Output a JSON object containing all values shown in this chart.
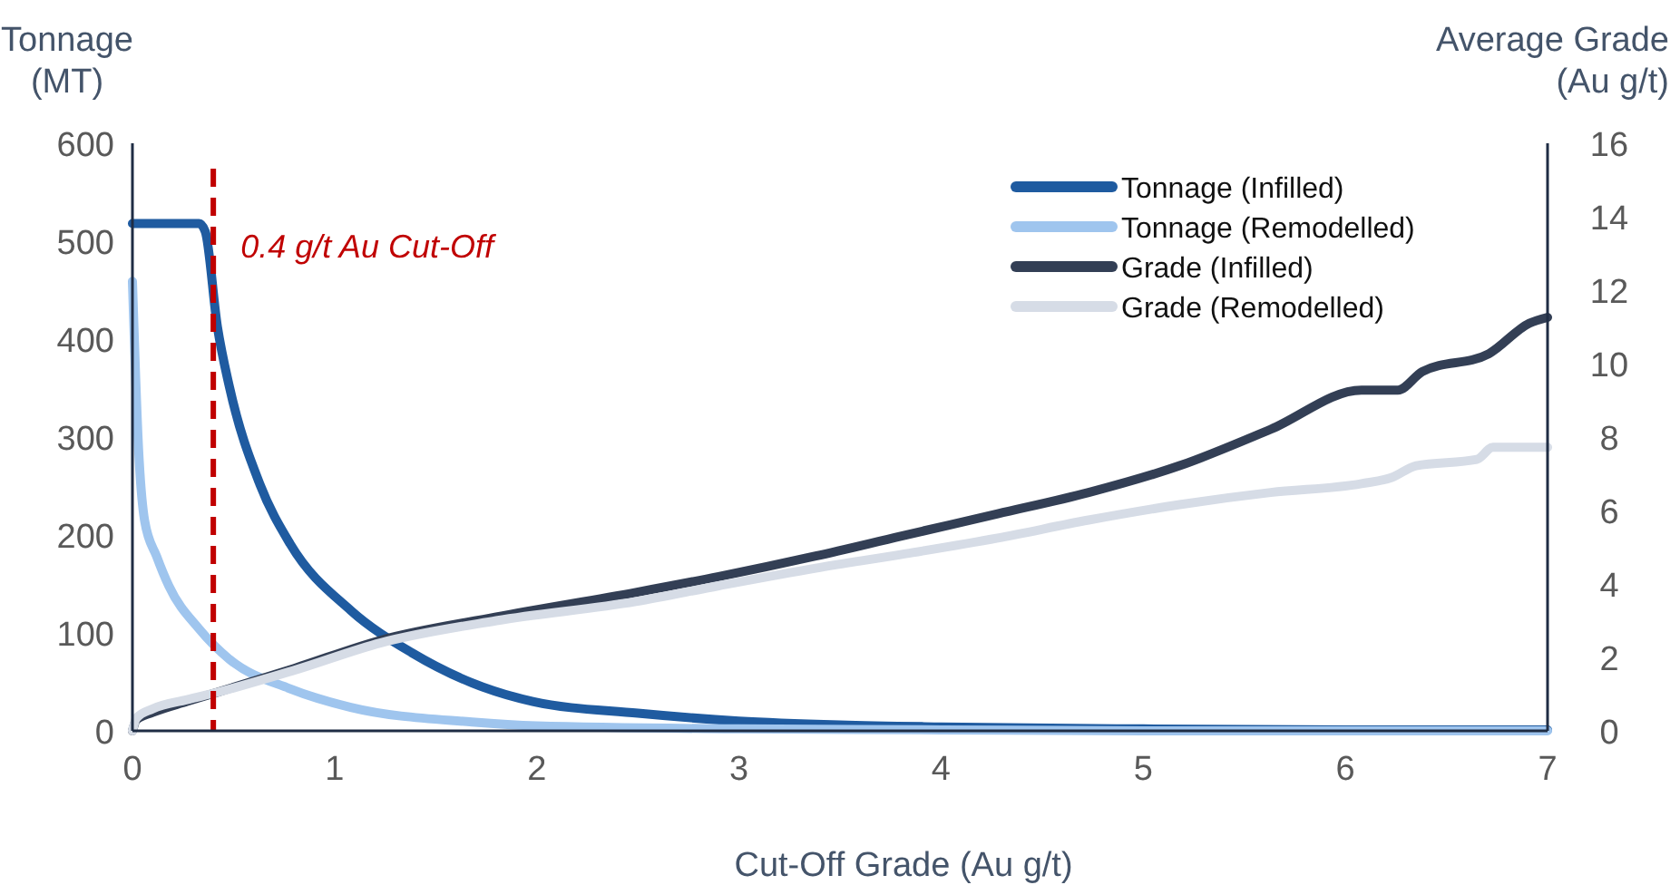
{
  "chart_data": {
    "type": "line",
    "xlabel": "Cut-Off Grade (Au g/t)",
    "ylabel": "Tonnage\n(MT)",
    "y2label": "Average Grade\n(Au g/t)",
    "xlim": [
      0,
      7
    ],
    "xticks": [
      0,
      1,
      2,
      3,
      4,
      5,
      6,
      7
    ],
    "ylim": [
      0,
      600
    ],
    "yticks": [
      0,
      100,
      200,
      300,
      400,
      500,
      600
    ],
    "y2lim": [
      0,
      16
    ],
    "y2ticks": [
      0,
      2,
      4,
      6,
      8,
      10,
      12,
      14,
      16
    ],
    "grid": false,
    "legend": "top right",
    "marker": "none",
    "line_style": "solid",
    "ref_lines": [
      {
        "axis": "x",
        "value": 0.4,
        "label": "0.4 g/t Au Cut-Off",
        "color": "#c00000",
        "line_style": "dashed"
      }
    ],
    "series": [
      {
        "name": "Tonnage (Infilled)",
        "color": "#1f5ba0",
        "x": [
          0,
          0.1,
          0.2,
          0.33,
          0.36,
          0.42,
          0.48,
          0.63,
          0.78,
          1.08,
          1.38,
          1.68,
          1.98,
          2.5,
          3,
          3.5,
          4,
          5,
          6,
          7
        ],
        "values": [
          518,
          518,
          518,
          518,
          510,
          413,
          351,
          252,
          191,
          123,
          80,
          49,
          30,
          18,
          10,
          6,
          4,
          2,
          1,
          1
        ]
      },
      {
        "name": "Tonnage (Remodelled)",
        "color": "#9fc5ee",
        "x": [
          0,
          0.03,
          0.06,
          0.12,
          0.18,
          0.33,
          0.48,
          0.78,
          1.08,
          1.68,
          2,
          3,
          4,
          5,
          6,
          7
        ],
        "values": [
          459,
          289,
          215,
          178,
          148,
          104,
          73,
          43,
          24,
          9,
          5,
          2,
          1,
          0,
          0,
          0
        ]
      },
      {
        "name": "Grade (Infilled)",
        "color": "#333f55",
        "axis": "y2",
        "x": [
          0,
          0.02,
          0.1,
          0.27,
          0.42,
          0.8,
          1.23,
          1.8,
          2.49,
          2.9,
          3.38,
          3.8,
          4.28,
          4.73,
          5.18,
          5.63,
          6.08,
          6.26,
          6.38,
          6.71,
          6.91,
          7.0
        ],
        "values": [
          0,
          0.3,
          0.5,
          0.8,
          1.05,
          1.7,
          2.47,
          3.1,
          3.77,
          4.2,
          4.76,
          5.3,
          5.91,
          6.49,
          7.22,
          8.21,
          9.28,
          9.28,
          9.78,
          10.27,
          11.1,
          11.26
        ]
      },
      {
        "name": "Grade (Remodelled)",
        "color": "#d6dce6",
        "axis": "y2",
        "x": [
          0,
          0.02,
          0.1,
          0.27,
          0.42,
          0.8,
          1.23,
          1.8,
          2.49,
          2.9,
          3.38,
          3.8,
          4.28,
          4.73,
          5.18,
          5.63,
          6.08,
          6.23,
          6.35,
          6.65,
          6.73,
          7.0
        ],
        "values": [
          0,
          0.35,
          0.6,
          0.85,
          1.05,
          1.65,
          2.4,
          3.0,
          3.52,
          3.95,
          4.43,
          4.8,
          5.25,
          5.74,
          6.16,
          6.49,
          6.73,
          6.9,
          7.22,
          7.39,
          7.72,
          7.72
        ]
      }
    ]
  }
}
